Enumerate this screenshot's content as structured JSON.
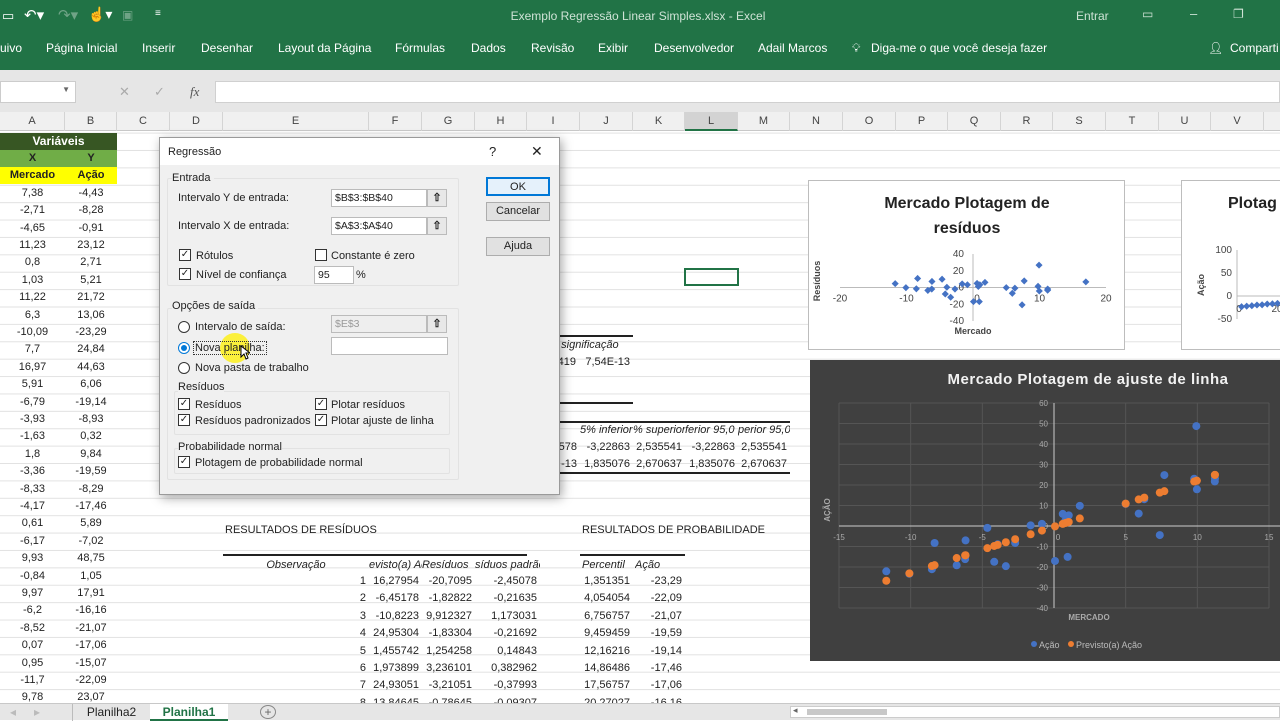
{
  "titlebar": {
    "title": "Exemplo Regressão Linear Simples.xlsx  -  Excel",
    "signin": "Entrar",
    "icons": [
      "save-icon",
      "undo-icon",
      "redo-icon",
      "touch-mode-icon",
      "camera-icon",
      "customize-icon",
      "ribbon-display-icon",
      "minimize-icon",
      "restore-icon"
    ]
  },
  "ribbon": {
    "tabs": [
      "uivo",
      "Página Inicial",
      "Inserir",
      "Desenhar",
      "Layout da Página",
      "Fórmulas",
      "Dados",
      "Revisão",
      "Exibir",
      "Desenvolvedor",
      "Adail Marcos"
    ],
    "tell_me": "Diga-me o que você deseja fazer",
    "share": "Comparti"
  },
  "formula_bar": {
    "name_box": "",
    "cancel": "✕",
    "enter": "✓",
    "fx": "fx",
    "formula": ""
  },
  "columns": [
    "A",
    "B",
    "C",
    "D",
    "E",
    "F",
    "G",
    "H",
    "I",
    "J",
    "K",
    "L",
    "M",
    "N",
    "O",
    "P",
    "Q",
    "R",
    "S",
    "T",
    "U",
    "V"
  ],
  "variables": {
    "header": "Variáveis",
    "x": "X",
    "y": "Y",
    "x_label": "Mercado",
    "y_label": "Ação",
    "mercado": [
      "7,38",
      "-2,71",
      "-4,65",
      "11,23",
      "0,8",
      "1,03",
      "11,22",
      "6,3",
      "-10,09",
      "7,7",
      "16,97",
      "5,91",
      "-6,79",
      "-3,93",
      "-1,63",
      "1,8",
      "-3,36",
      "-8,33",
      "-4,17",
      "0,61",
      "-6,17",
      "9,93",
      "-0,84",
      "9,97",
      "-6,2",
      "-8,52",
      "0,07",
      "0,95",
      "-11,7",
      "9,78",
      "5"
    ],
    "acao": [
      "-4,43",
      "-8,28",
      "-0,91",
      "23,12",
      "2,71",
      "5,21",
      "21,72",
      "13,06",
      "-23,29",
      "24,84",
      "44,63",
      "6,06",
      "-19,14",
      "-8,93",
      "0,32",
      "9,84",
      "-19,59",
      "-8,29",
      "-17,46",
      "5,89",
      "-7,02",
      "48,75",
      "1,05",
      "17,91",
      "-16,16",
      "-21,07",
      "-17,06",
      "-15,07",
      "-22,09",
      "23,07",
      "10,78"
    ]
  },
  "anova": {
    "header": "e significação",
    "value_prefix": "419",
    "value": "7,54E-13"
  },
  "coefficients": {
    "headers": [
      "-P",
      "5% inferior",
      "% superior",
      "ferior 95,0",
      "perior 95,0%"
    ],
    "rows": [
      [
        "578",
        "-3,22863",
        "2,535541",
        "-3,22863",
        "2,535541"
      ],
      [
        "-13",
        "1,835076",
        "2,670637",
        "1,835076",
        "2,670637"
      ]
    ]
  },
  "residuals": {
    "title": "RESULTADOS DE RESÍDUOS",
    "headers": [
      "Observação",
      "evisto(a) Aç",
      "Resíduos",
      "síduos padrão"
    ],
    "rows": [
      [
        "1",
        "16,27954",
        "-20,7095",
        "-2,45078"
      ],
      [
        "2",
        "-6,45178",
        "-1,82822",
        "-0,21635"
      ],
      [
        "3",
        "-10,8223",
        "9,912327",
        "1,173031"
      ],
      [
        "4",
        "24,95304",
        "-1,83304",
        "-0,21692"
      ],
      [
        "5",
        "1,455742",
        "1,254258",
        "0,14843"
      ],
      [
        "6",
        "1,973899",
        "3,236101",
        "0,382962"
      ],
      [
        "7",
        "24,93051",
        "-3,21051",
        "-0,37993"
      ],
      [
        "8",
        "13,84645",
        "-0,78645",
        "-0,09307"
      ]
    ]
  },
  "probability": {
    "title": "RESULTADOS DE PROBABILIDADE",
    "headers": [
      "Percentil",
      "Ação"
    ],
    "rows": [
      [
        "1,351351",
        "-23,29"
      ],
      [
        "4,054054",
        "-22,09"
      ],
      [
        "6,756757",
        "-21,07"
      ],
      [
        "9,459459",
        "-19,59"
      ],
      [
        "12,16216",
        "-19,14"
      ],
      [
        "14,86486",
        "-17,46"
      ],
      [
        "17,56757",
        "-17,06"
      ],
      [
        "20,27027",
        "-16,16"
      ]
    ]
  },
  "dialog": {
    "title": "Regressão",
    "help": "?",
    "close": "✕",
    "ok": "OK",
    "cancel": "Cancelar",
    "help_button": "Ajuda",
    "input_group": "Entrada",
    "y_range_label": "Intervalo Y de entrada:",
    "y_range_value": "$B$3:$B$40",
    "x_range_label": "Intervalo X de entrada:",
    "x_range_value": "$A$3:$A$40",
    "labels": "Rótulos",
    "labels_checked": true,
    "constant_zero": "Constante é zero",
    "constant_zero_checked": false,
    "confidence": "Nível de confiança",
    "confidence_checked": true,
    "confidence_value": "95",
    "percent": "%",
    "output_group": "Opções de saída",
    "output_range": "Intervalo de saída:",
    "output_range_value": "$E$3",
    "new_sheet": "Nova planilha:",
    "new_sheet_value": "",
    "new_workbook": "Nova pasta de trabalho",
    "selected_output": "new_sheet",
    "residuals_group": "Resíduos",
    "residuals": "Resíduos",
    "residuals_checked": true,
    "std_residuals": "Resíduos padronizados",
    "std_residuals_checked": true,
    "plot_residuals": "Plotar resíduos",
    "plot_residuals_checked": true,
    "plot_fit": "Plotar ajuste de linha",
    "plot_fit_checked": true,
    "normal_group": "Probabilidade normal",
    "normal_plot": "Plotagem de probabilidade normal",
    "normal_plot_checked": true
  },
  "sheets": {
    "tabs": [
      "Planilha2",
      "Planilha1"
    ],
    "active": "Planilha1",
    "add": "+"
  },
  "chart_data": [
    {
      "type": "scatter",
      "title": "Mercado Plotagem de resíduos",
      "xlabel": "Mercado",
      "ylabel": "Resíduos",
      "xlim": [
        -20,
        20
      ],
      "ylim": [
        -40,
        40
      ],
      "xticks": [
        "-20",
        "-10",
        "0",
        "10",
        "20"
      ],
      "yticks": [
        "40",
        "20",
        "0",
        "-20",
        "-40"
      ],
      "grid": false,
      "color": "#4472c4",
      "points": [
        [
          7.38,
          -20.71
        ],
        [
          -2.71,
          -1.83
        ],
        [
          -4.65,
          9.91
        ],
        [
          11.23,
          -1.83
        ],
        [
          0.8,
          1.25
        ],
        [
          1.03,
          3.24
        ],
        [
          11.22,
          -3.21
        ],
        [
          6.3,
          -0.79
        ],
        [
          -10.09,
          -0.21
        ],
        [
          7.7,
          7.84
        ],
        [
          16.97,
          6.74
        ],
        [
          5.91,
          -6.91
        ],
        [
          -6.79,
          -3.5
        ],
        [
          -3.93,
          0.27
        ],
        [
          -1.63,
          4.34
        ],
        [
          1.8,
          6.13
        ],
        [
          -3.36,
          -11.67
        ],
        [
          -8.33,
          10.82
        ],
        [
          -4.17,
          -7.72
        ],
        [
          0.61,
          4.86
        ],
        [
          -6.17,
          7.23
        ],
        [
          9.93,
          26.72
        ],
        [
          -0.84,
          3.29
        ],
        [
          9.97,
          -4.21
        ],
        [
          -6.2,
          -1.84
        ],
        [
          -8.52,
          -1.53
        ],
        [
          0.07,
          -16.87
        ],
        [
          0.95,
          -16.86
        ],
        [
          -11.7,
          4.62
        ],
        [
          9.78,
          1.38
        ],
        [
          5,
          -0.14
        ]
      ]
    },
    {
      "type": "scatter",
      "title": "Plotag",
      "ylabel": "Ação",
      "ylim": [
        -50,
        100
      ],
      "yticks": [
        "100",
        "50",
        "0",
        "-50"
      ],
      "xticks": [
        "0",
        "20"
      ],
      "color": "#4472c4",
      "points": [
        [
          1.35,
          -23.29
        ],
        [
          4.05,
          -22.09
        ],
        [
          6.76,
          -21.07
        ],
        [
          9.46,
          -19.59
        ],
        [
          12.16,
          -19.14
        ],
        [
          14.86,
          -17.46
        ],
        [
          17.57,
          -17.06
        ],
        [
          20.27,
          -16.16
        ]
      ]
    },
    {
      "type": "scatter",
      "title": "Mercado Plotagem de ajuste de linha",
      "xlabel": "MERCADO",
      "ylabel": "AÇÃO",
      "xlim": [
        -15,
        15
      ],
      "ylim": [
        -40,
        60
      ],
      "xticks": [
        "-15",
        "-10",
        "-5",
        "0",
        "5",
        "10",
        "15"
      ],
      "yticks": [
        "60",
        "50",
        "40",
        "30",
        "20",
        "10",
        "0",
        "-10",
        "-20",
        "-30",
        "-40"
      ],
      "grid": true,
      "legend": "bottom",
      "background": "#404040",
      "series": [
        {
          "name": "Ação",
          "color": "#4472c4",
          "points": [
            [
              7.38,
              -4.43
            ],
            [
              -2.71,
              -8.28
            ],
            [
              -4.65,
              -0.91
            ],
            [
              11.23,
              23.12
            ],
            [
              0.8,
              2.71
            ],
            [
              1.03,
              5.21
            ],
            [
              11.22,
              21.72
            ],
            [
              6.3,
              13.06
            ],
            [
              -10.09,
              -23.29
            ],
            [
              7.7,
              24.84
            ],
            [
              5.91,
              6.06
            ],
            [
              -6.79,
              -19.14
            ],
            [
              -3.93,
              -8.93
            ],
            [
              -1.63,
              0.32
            ],
            [
              1.8,
              9.84
            ],
            [
              -3.36,
              -19.59
            ],
            [
              -8.33,
              -8.29
            ],
            [
              -4.17,
              -17.46
            ],
            [
              0.61,
              5.89
            ],
            [
              -6.17,
              -7.02
            ],
            [
              9.93,
              48.75
            ],
            [
              -0.84,
              1.05
            ],
            [
              9.97,
              17.91
            ],
            [
              -6.2,
              -16.16
            ],
            [
              -8.52,
              -21.07
            ],
            [
              0.07,
              -17.06
            ],
            [
              0.95,
              -15.07
            ],
            [
              -11.7,
              -22.09
            ],
            [
              9.78,
              23.07
            ],
            [
              5,
              10.78
            ]
          ]
        },
        {
          "name": "Previsto(a) Ação",
          "color": "#ed7d31",
          "points": [
            [
              7.38,
              16.28
            ],
            [
              -2.71,
              -6.45
            ],
            [
              -4.65,
              -10.82
            ],
            [
              11.23,
              24.95
            ],
            [
              0.8,
              1.46
            ],
            [
              1.03,
              1.97
            ],
            [
              11.22,
              24.93
            ],
            [
              6.3,
              13.85
            ],
            [
              -10.09,
              -23.08
            ],
            [
              7.7,
              17.0
            ],
            [
              5.91,
              12.97
            ],
            [
              -6.79,
              -15.64
            ],
            [
              -3.93,
              -9.2
            ],
            [
              -1.63,
              -4.02
            ],
            [
              1.8,
              3.71
            ],
            [
              -3.36,
              -7.92
            ],
            [
              -8.33,
              -19.11
            ],
            [
              -4.17,
              -9.74
            ],
            [
              0.61,
              1.03
            ],
            [
              -6.17,
              -14.25
            ],
            [
              9.93,
              22.03
            ],
            [
              -0.84,
              -2.24
            ],
            [
              9.97,
              22.12
            ],
            [
              -6.2,
              -14.32
            ],
            [
              -8.52,
              -19.54
            ],
            [
              0.07,
              -0.19
            ],
            [
              0.95,
              1.79
            ],
            [
              -11.7,
              -26.71
            ],
            [
              9.78,
              21.69
            ],
            [
              5,
              10.92
            ]
          ]
        }
      ]
    }
  ]
}
